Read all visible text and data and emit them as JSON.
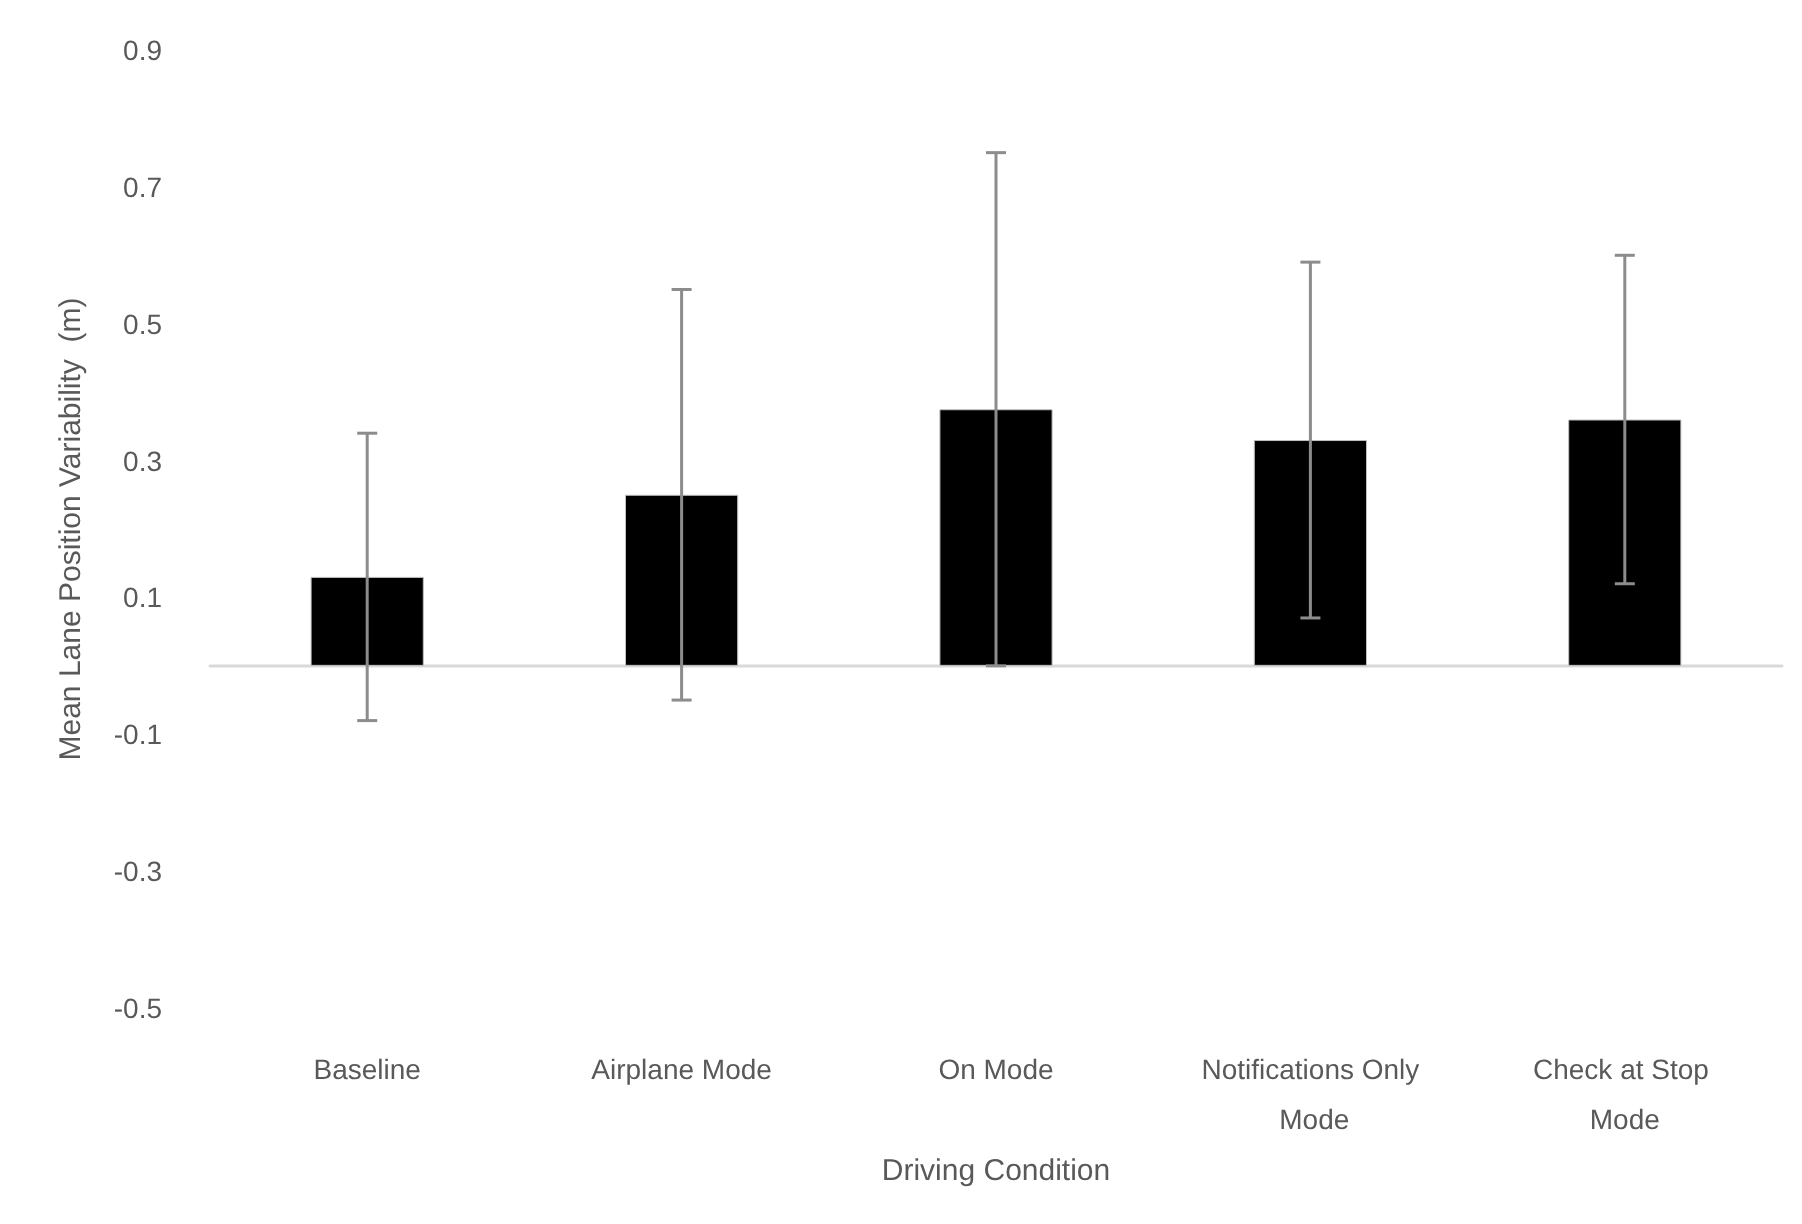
{
  "chart_data": {
    "type": "bar",
    "xlabel": "Driving Condition",
    "ylabel": "Mean Lane Position Variability  (m)",
    "categories": [
      "Baseline",
      "Airplane Mode",
      "On Mode",
      "Notifications Only Mode",
      "Check at Stop Mode"
    ],
    "values": [
      0.13,
      0.25,
      0.375,
      0.33,
      0.36
    ],
    "errors": [
      0.21,
      0.3,
      0.375,
      0.26,
      0.24
    ],
    "color": "#000000",
    "ylim": [
      -0.5,
      0.9
    ],
    "yticks": [
      -0.5,
      -0.3,
      -0.1,
      0.1,
      0.3,
      0.5,
      0.7,
      0.9
    ],
    "grid": false
  }
}
